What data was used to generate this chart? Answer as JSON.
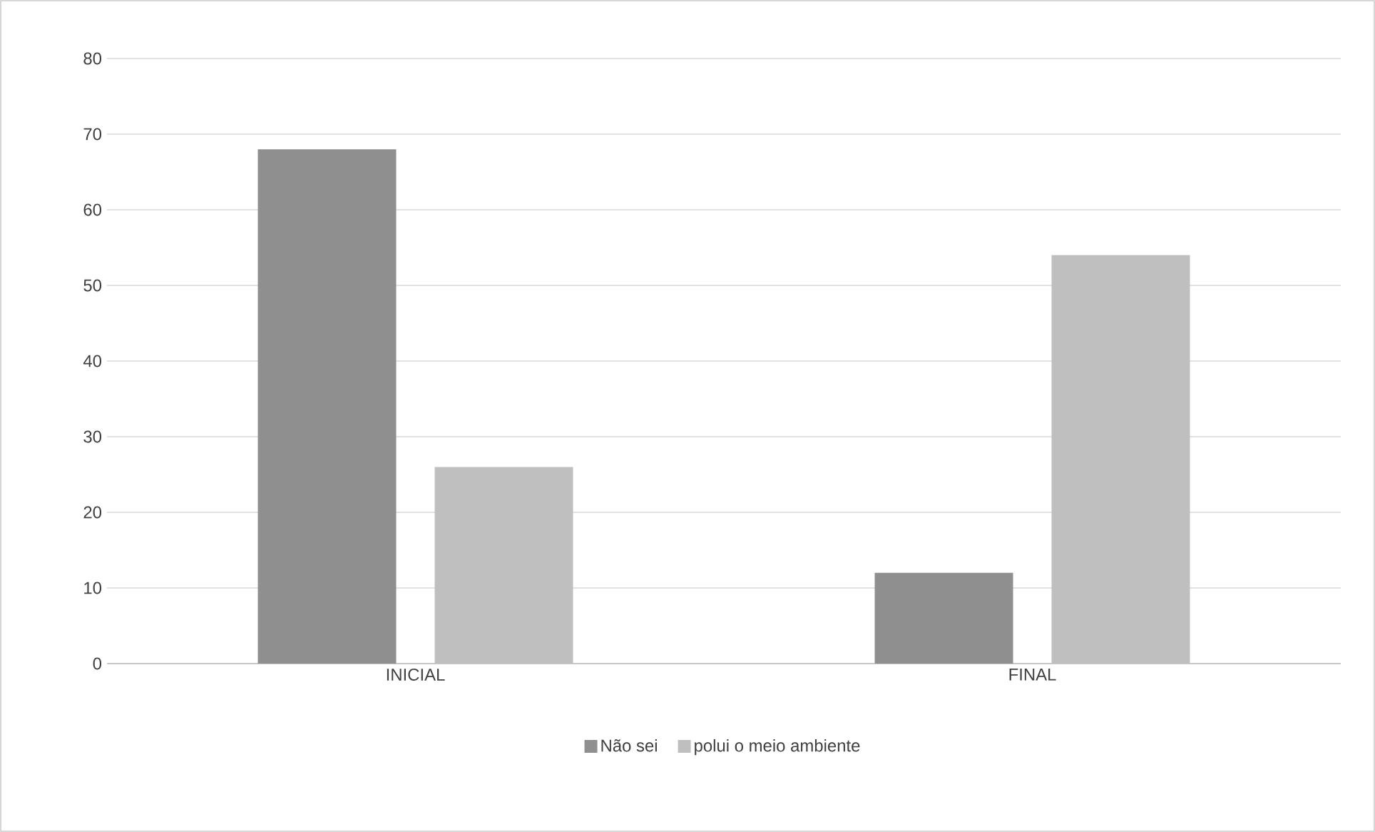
{
  "chart_data": {
    "type": "bar",
    "categories": [
      "INICIAL",
      "FINAL"
    ],
    "series": [
      {
        "name": "Não sei",
        "color": "#8f8f8f",
        "values": [
          68,
          12
        ]
      },
      {
        "name": "polui o meio ambiente",
        "color": "#bfbfbf",
        "values": [
          26,
          54
        ]
      }
    ],
    "ylim": [
      0,
      80
    ],
    "yticks": [
      0,
      10,
      20,
      30,
      40,
      50,
      60,
      70,
      80
    ],
    "grid": "y",
    "legend": "bottom"
  }
}
